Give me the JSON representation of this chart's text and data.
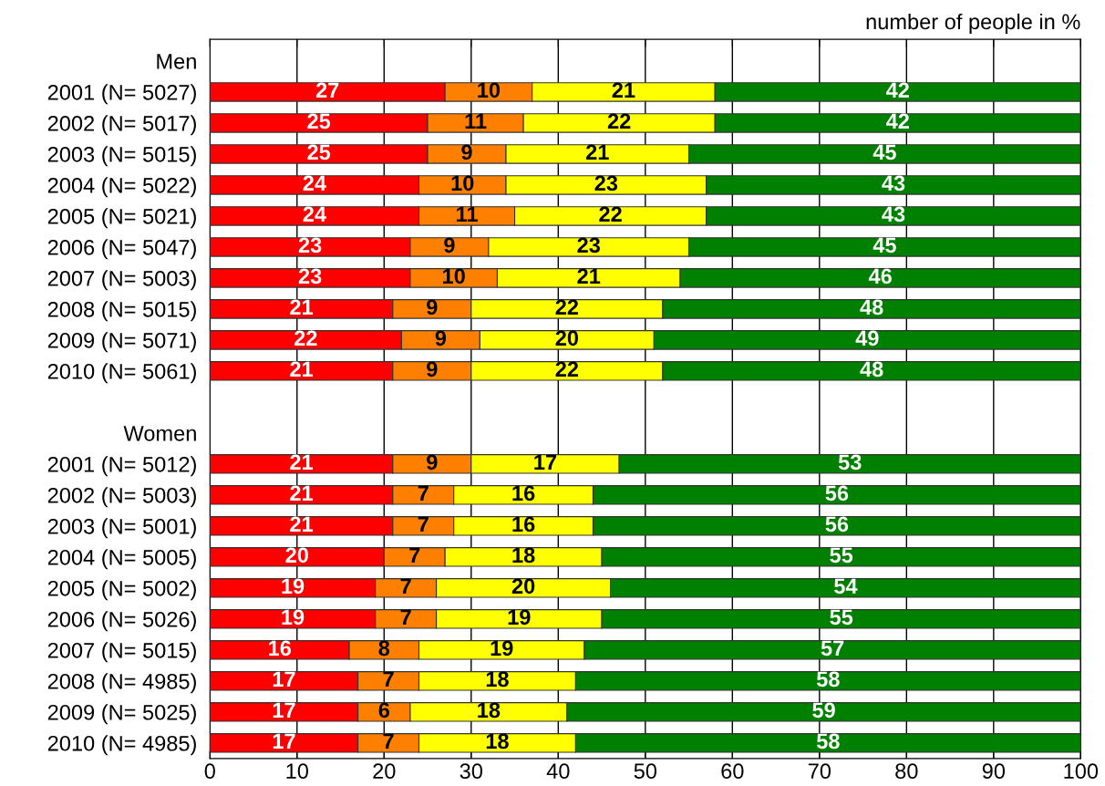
{
  "chart_data": {
    "type": "bar",
    "orientation": "horizontal",
    "stacked": true,
    "xlabel": "number of people in %",
    "categories": [
      "Men",
      "2001 (N= 5027)",
      "2002 (N= 5017)",
      "2003 (N= 5015)",
      "2004 (N= 5022)",
      "2005 (N= 5021)",
      "2006 (N= 5047)",
      "2007 (N= 5003)",
      "2008 (N= 5015)",
      "2009 (N= 5071)",
      "2010 (N= 5061)",
      null,
      "Women",
      "2001 (N= 5012)",
      "2002 (N= 5003)",
      "2003 (N= 5001)",
      "2004 (N= 5005)",
      "2005 (N= 5002)",
      "2006 (N= 5026)",
      "2007 (N= 5015)",
      "2008 (N= 4985)",
      "2009 (N= 5025)",
      "2010 (N= 4985)"
    ],
    "series": [
      {
        "color": "#ff0000",
        "values": [
          null,
          27,
          25,
          25,
          24,
          24,
          23,
          23,
          21,
          22,
          21,
          null,
          null,
          21,
          21,
          21,
          20,
          19,
          19,
          16,
          17,
          17,
          17
        ]
      },
      {
        "color": "#ff8000",
        "values": [
          null,
          10,
          11,
          9,
          10,
          11,
          9,
          10,
          9,
          9,
          9,
          null,
          null,
          9,
          7,
          7,
          7,
          7,
          7,
          8,
          7,
          6,
          7
        ]
      },
      {
        "color": "#ffff00",
        "values": [
          null,
          21,
          22,
          21,
          23,
          22,
          23,
          21,
          22,
          20,
          22,
          null,
          null,
          17,
          16,
          16,
          18,
          20,
          19,
          19,
          18,
          18,
          18
        ]
      },
      {
        "color": "#008000",
        "values": [
          null,
          42,
          42,
          45,
          43,
          43,
          45,
          46,
          48,
          49,
          48,
          null,
          null,
          53,
          56,
          56,
          55,
          54,
          55,
          57,
          58,
          59,
          58
        ]
      }
    ],
    "data_labels": true,
    "xlim": [
      0,
      100
    ],
    "xticks": [
      0,
      10,
      20,
      30,
      40,
      50,
      60,
      70,
      80,
      90,
      100
    ],
    "grid": "x"
  }
}
